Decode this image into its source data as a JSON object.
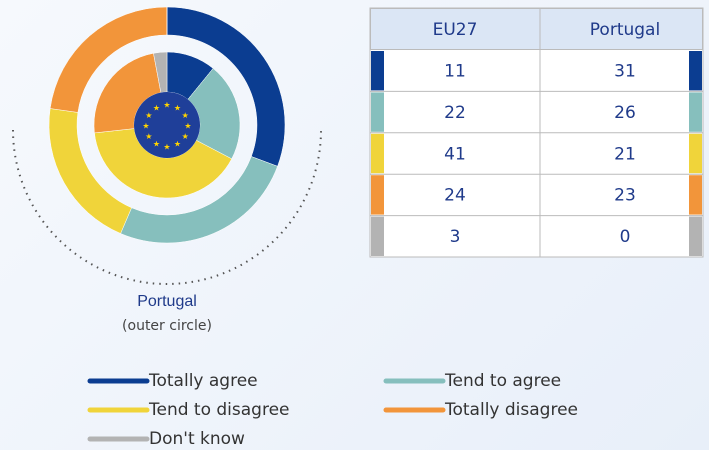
{
  "chart_data": {
    "type": "pie",
    "categories": [
      "Totally agree",
      "Tend to agree",
      "Tend to disagree",
      "Totally disagree",
      "Don't know"
    ],
    "colors": [
      "#0b3d91",
      "#86bfbd",
      "#f0d43a",
      "#f2953a",
      "#b3b3b3"
    ],
    "series": [
      {
        "name": "EU27",
        "values": [
          11,
          22,
          41,
          24,
          3
        ]
      },
      {
        "name": "Portugal",
        "values": [
          31,
          26,
          21,
          23,
          0
        ]
      }
    ],
    "outer_label": "Portugal",
    "outer_note": "(outer circle)"
  }
}
